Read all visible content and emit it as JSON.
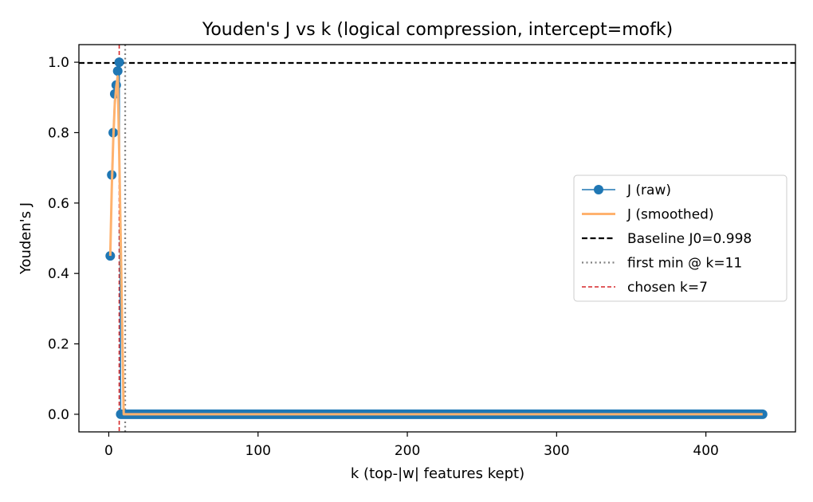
{
  "chart_data": {
    "type": "line",
    "title": "Youden's J vs k (logical compression, intercept=mofk)",
    "xlabel": "k (top-|w| features kept)",
    "ylabel": "Youden's J",
    "xlim": [
      -20,
      460
    ],
    "ylim": [
      -0.05,
      1.05
    ],
    "xticks": [
      0,
      100,
      200,
      300,
      400
    ],
    "yticks": [
      0.0,
      0.2,
      0.4,
      0.6,
      0.8,
      1.0
    ],
    "xtick_labels": [
      "0",
      "100",
      "200",
      "300",
      "400"
    ],
    "ytick_labels": [
      "0.0",
      "0.2",
      "0.4",
      "0.6",
      "0.8",
      "1.0"
    ],
    "grid": false,
    "legend_position": "center-right",
    "series": [
      {
        "name": "J (raw)",
        "style": "line-with-markers",
        "color": "#1f77b4",
        "points": [
          [
            1,
            0.45
          ],
          [
            2,
            0.68
          ],
          [
            3,
            0.8
          ],
          [
            4,
            0.91
          ],
          [
            5,
            0.935
          ],
          [
            6,
            0.975
          ],
          [
            7,
            1.0
          ],
          [
            8,
            0.0
          ],
          [
            9,
            0.0
          ],
          [
            10,
            0.0
          ],
          [
            11,
            0.0
          ],
          [
            438,
            0.0
          ]
        ],
        "flat_run": {
          "from": 8,
          "to": 438,
          "value": 0.0
        }
      },
      {
        "name": "J (smoothed)",
        "style": "line",
        "color": "#ffb26e",
        "points": [
          [
            1,
            0.45
          ],
          [
            2,
            0.64
          ],
          [
            3,
            0.78
          ],
          [
            4,
            0.88
          ],
          [
            5,
            0.93
          ],
          [
            6,
            0.96
          ],
          [
            7,
            0.74
          ],
          [
            8,
            0.5
          ],
          [
            9,
            0.25
          ],
          [
            10,
            0.0
          ],
          [
            438,
            0.0
          ]
        ]
      }
    ],
    "reference_lines": [
      {
        "name": "Baseline J0=0.998",
        "orientation": "horizontal",
        "value": 0.998,
        "style": "dashed",
        "color": "#000000"
      },
      {
        "name": "first min @ k=11",
        "orientation": "vertical",
        "value": 11,
        "style": "dotted",
        "color": "#808080"
      },
      {
        "name": "chosen k=7",
        "orientation": "vertical",
        "value": 7,
        "style": "dashed",
        "color": "#d62728"
      }
    ]
  }
}
